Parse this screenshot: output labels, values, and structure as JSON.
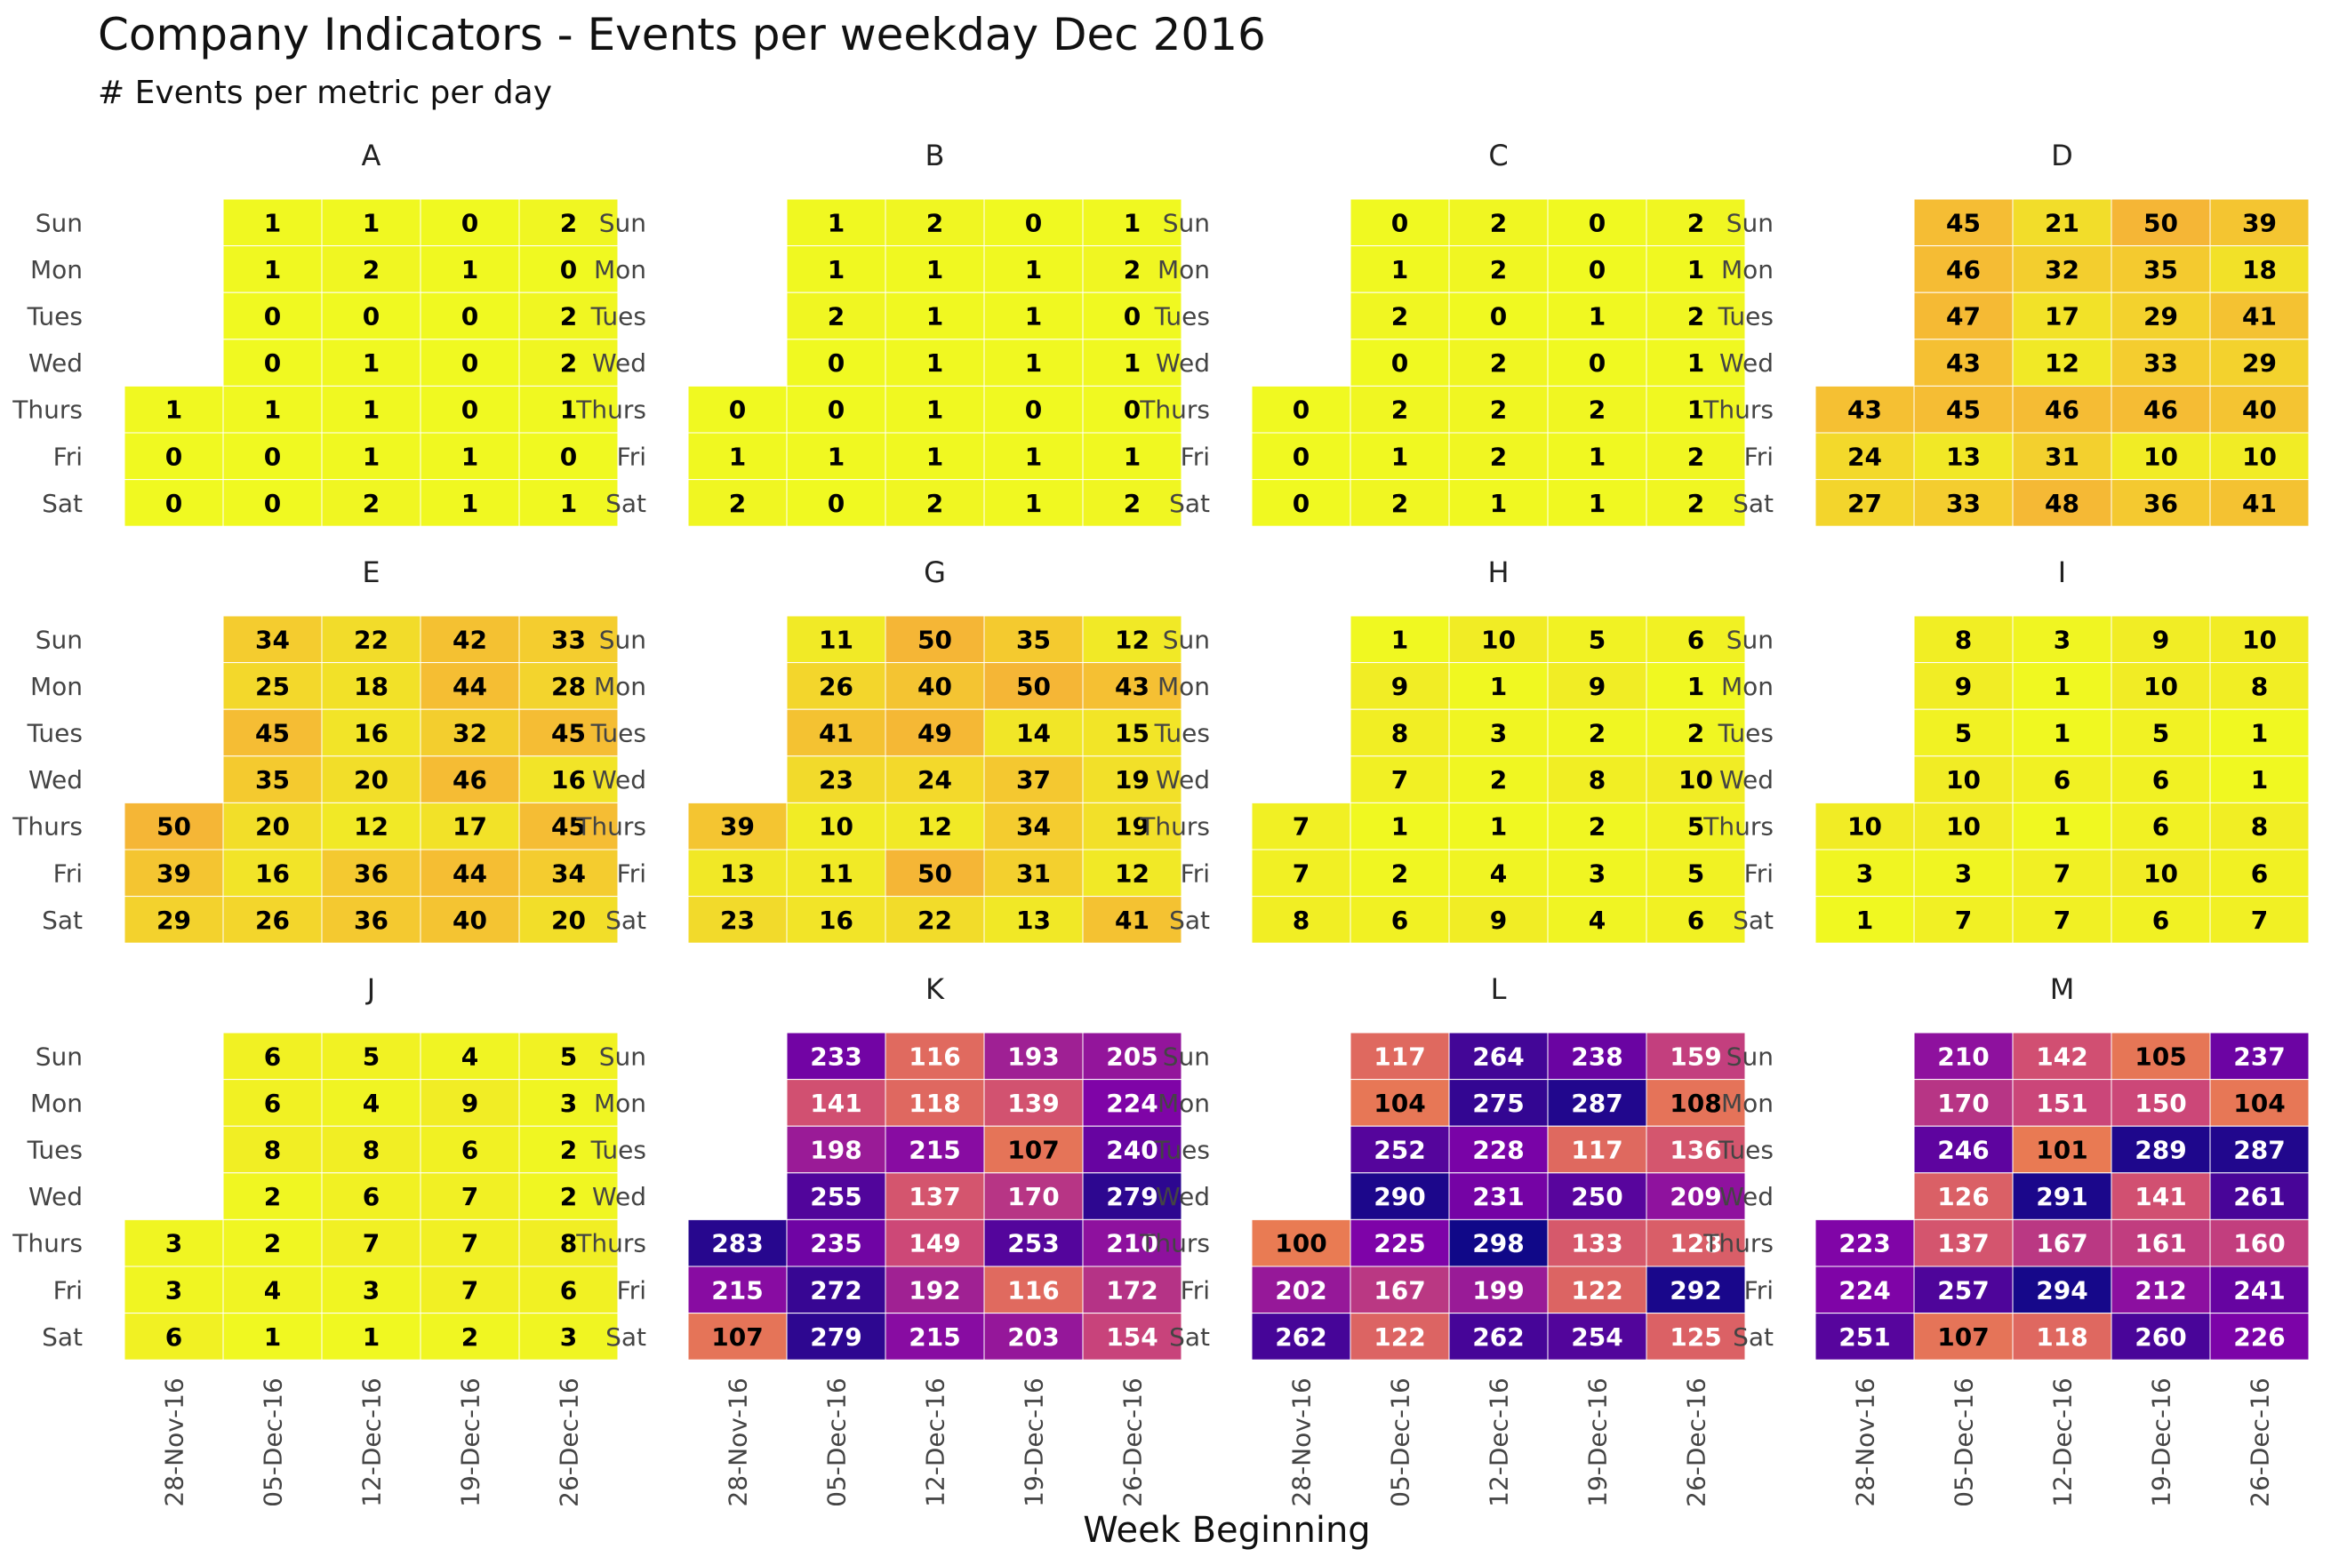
{
  "chart_data": {
    "type": "heatmap",
    "title": "Company Indicators - Events per weekday Dec 2016",
    "subtitle": "# Events per metric per day",
    "xlabel": "Week Beginning",
    "weeks": [
      "28-Nov-16",
      "05-Dec-16",
      "12-Dec-16",
      "19-Dec-16",
      "26-Dec-16"
    ],
    "days": [
      "Sun",
      "Mon",
      "Tues",
      "Wed",
      "Thurs",
      "Fri",
      "Sat"
    ],
    "color_scale": {
      "min": 0,
      "max": 300,
      "palette": "plasma",
      "colors": [
        "#0d0887",
        "#7e03a8",
        "#cc4778",
        "#f89540",
        "#f0f921"
      ]
    },
    "panels": [
      {
        "name": "A",
        "values": [
          [
            null,
            1,
            1,
            0,
            2
          ],
          [
            null,
            1,
            2,
            1,
            0
          ],
          [
            null,
            0,
            0,
            0,
            2
          ],
          [
            null,
            0,
            1,
            0,
            2
          ],
          [
            1,
            1,
            1,
            0,
            1
          ],
          [
            0,
            0,
            1,
            1,
            0
          ],
          [
            0,
            0,
            2,
            1,
            1
          ]
        ]
      },
      {
        "name": "B",
        "values": [
          [
            null,
            1,
            2,
            0,
            1
          ],
          [
            null,
            1,
            1,
            1,
            2
          ],
          [
            null,
            2,
            1,
            1,
            0
          ],
          [
            null,
            0,
            1,
            1,
            1
          ],
          [
            0,
            0,
            1,
            0,
            0
          ],
          [
            1,
            1,
            1,
            1,
            1
          ],
          [
            2,
            0,
            2,
            1,
            2
          ]
        ]
      },
      {
        "name": "C",
        "values": [
          [
            null,
            0,
            2,
            0,
            2
          ],
          [
            null,
            1,
            2,
            0,
            1
          ],
          [
            null,
            2,
            0,
            1,
            2
          ],
          [
            null,
            0,
            2,
            0,
            1
          ],
          [
            0,
            2,
            2,
            2,
            1
          ],
          [
            0,
            1,
            2,
            1,
            2
          ],
          [
            0,
            2,
            1,
            1,
            2
          ]
        ]
      },
      {
        "name": "D",
        "values": [
          [
            null,
            45,
            21,
            50,
            39
          ],
          [
            null,
            46,
            32,
            35,
            18
          ],
          [
            null,
            47,
            17,
            29,
            41
          ],
          [
            null,
            43,
            12,
            33,
            29
          ],
          [
            43,
            45,
            46,
            46,
            40
          ],
          [
            24,
            13,
            31,
            10,
            10
          ],
          [
            27,
            33,
            48,
            36,
            41
          ]
        ]
      },
      {
        "name": "E",
        "values": [
          [
            null,
            34,
            22,
            42,
            33
          ],
          [
            null,
            25,
            18,
            44,
            28
          ],
          [
            null,
            45,
            16,
            32,
            45
          ],
          [
            null,
            35,
            20,
            46,
            16
          ],
          [
            50,
            20,
            12,
            17,
            45
          ],
          [
            39,
            16,
            36,
            44,
            34
          ],
          [
            29,
            26,
            36,
            40,
            20
          ]
        ]
      },
      {
        "name": "G",
        "values": [
          [
            null,
            11,
            50,
            35,
            12
          ],
          [
            null,
            26,
            40,
            50,
            43
          ],
          [
            null,
            41,
            49,
            14,
            15
          ],
          [
            null,
            23,
            24,
            37,
            19
          ],
          [
            39,
            10,
            12,
            34,
            19
          ],
          [
            13,
            11,
            50,
            31,
            12
          ],
          [
            23,
            16,
            22,
            13,
            41
          ]
        ]
      },
      {
        "name": "H",
        "values": [
          [
            null,
            1,
            10,
            5,
            6
          ],
          [
            null,
            9,
            1,
            9,
            1
          ],
          [
            null,
            8,
            3,
            2,
            2
          ],
          [
            null,
            7,
            2,
            8,
            10
          ],
          [
            7,
            1,
            1,
            2,
            5
          ],
          [
            7,
            2,
            4,
            3,
            5
          ],
          [
            8,
            6,
            9,
            4,
            6
          ]
        ]
      },
      {
        "name": "I",
        "values": [
          [
            null,
            8,
            3,
            9,
            10
          ],
          [
            null,
            9,
            1,
            10,
            8
          ],
          [
            null,
            5,
            1,
            5,
            1
          ],
          [
            null,
            10,
            6,
            6,
            1
          ],
          [
            10,
            10,
            1,
            6,
            8
          ],
          [
            3,
            3,
            7,
            10,
            6
          ],
          [
            1,
            7,
            7,
            6,
            7
          ]
        ]
      },
      {
        "name": "J",
        "values": [
          [
            null,
            6,
            5,
            4,
            5
          ],
          [
            null,
            6,
            4,
            9,
            3
          ],
          [
            null,
            8,
            8,
            6,
            2
          ],
          [
            null,
            2,
            6,
            7,
            2
          ],
          [
            3,
            2,
            7,
            7,
            8
          ],
          [
            3,
            4,
            3,
            7,
            6
          ],
          [
            6,
            1,
            1,
            2,
            3
          ]
        ]
      },
      {
        "name": "K",
        "values": [
          [
            null,
            233,
            116,
            193,
            205
          ],
          [
            null,
            141,
            118,
            139,
            224
          ],
          [
            null,
            198,
            215,
            107,
            240
          ],
          [
            null,
            255,
            137,
            170,
            279
          ],
          [
            283,
            235,
            149,
            253,
            210
          ],
          [
            215,
            272,
            192,
            116,
            172
          ],
          [
            107,
            279,
            215,
            203,
            154
          ]
        ]
      },
      {
        "name": "L",
        "values": [
          [
            null,
            117,
            264,
            238,
            159
          ],
          [
            null,
            104,
            275,
            287,
            108
          ],
          [
            null,
            252,
            228,
            117,
            136
          ],
          [
            null,
            290,
            231,
            250,
            209
          ],
          [
            100,
            225,
            298,
            133,
            128
          ],
          [
            202,
            167,
            199,
            122,
            292
          ],
          [
            262,
            122,
            262,
            254,
            125
          ]
        ]
      },
      {
        "name": "M",
        "values": [
          [
            null,
            210,
            142,
            105,
            237
          ],
          [
            null,
            170,
            151,
            150,
            104
          ],
          [
            null,
            246,
            101,
            289,
            287
          ],
          [
            null,
            126,
            291,
            141,
            261
          ],
          [
            223,
            137,
            167,
            161,
            160
          ],
          [
            224,
            257,
            294,
            212,
            241
          ],
          [
            251,
            107,
            118,
            260,
            226
          ]
        ]
      }
    ]
  }
}
